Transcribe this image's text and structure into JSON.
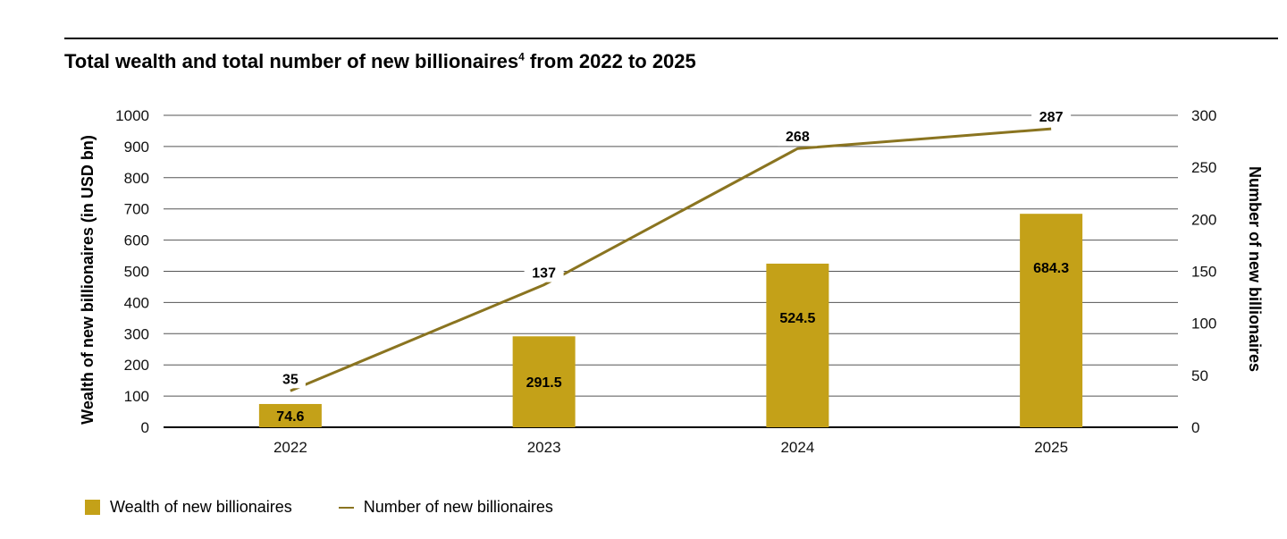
{
  "chart_data": {
    "type": "bar",
    "title": "Total wealth and total number of new billionaires",
    "title_superscript": "4",
    "title_suffix": " from 2022 to 2025",
    "categories": [
      "2022",
      "2023",
      "2024",
      "2025"
    ],
    "y_left": {
      "label": "Wealth of new billionaires (in USD bn)",
      "ylim": [
        0,
        1000
      ],
      "ticks": [
        "0",
        "100",
        "200",
        "300",
        "400",
        "500",
        "600",
        "700",
        "800",
        "900",
        "1000"
      ]
    },
    "y_right": {
      "label": "Number of new billionaires",
      "ylim": [
        0,
        300
      ],
      "ticks": [
        "0",
        "50",
        "100",
        "150",
        "200",
        "250",
        "300"
      ]
    },
    "series": [
      {
        "name": "Wealth of new billionaires",
        "type": "bar",
        "axis": "left",
        "color": "#c4a118",
        "values": [
          74.6,
          291.5,
          524.5,
          684.3
        ],
        "labels": [
          "74.6",
          "291.5",
          "524.5",
          "684.3"
        ]
      },
      {
        "name": "Number of new billionaires",
        "type": "line",
        "axis": "right",
        "color": "#8a7420",
        "values": [
          35,
          137,
          268,
          287
        ],
        "labels": [
          "35",
          "137",
          "268",
          "287"
        ]
      }
    ],
    "grid": "horizontal",
    "legend": "bottom-left"
  }
}
